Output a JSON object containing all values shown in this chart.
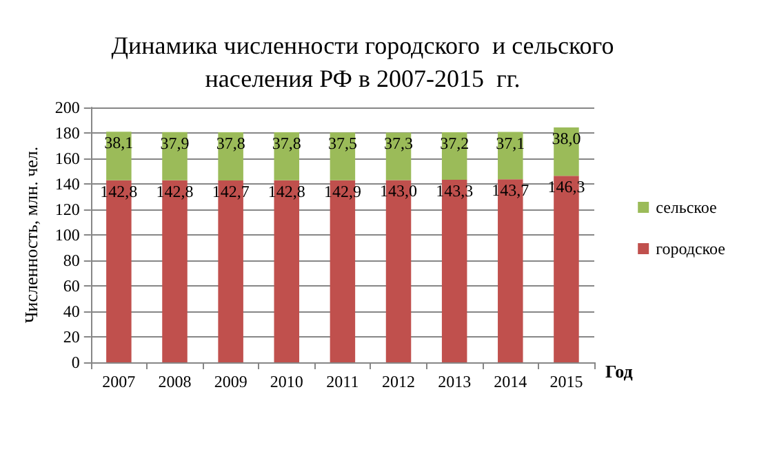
{
  "chart_data": {
    "type": "bar",
    "title": "Динамика численности городского  и сельского\nнаселения РФ в 2007-2015  гг.",
    "xlabel": "Год",
    "ylabel": "Численность, млн. чел.",
    "categories": [
      "2007",
      "2008",
      "2009",
      "2010",
      "2011",
      "2012",
      "2013",
      "2014",
      "2015"
    ],
    "stacked": true,
    "series": [
      {
        "name": "городское",
        "color": "#c0504d",
        "values": [
          142.8,
          142.8,
          142.7,
          142.8,
          142.9,
          143.0,
          143.3,
          143.7,
          146.3
        ],
        "value_labels": [
          "142,8",
          "142,8",
          "142,7",
          "142,8",
          "142,9",
          "143,0",
          "143,3",
          "143,7",
          "146,3"
        ]
      },
      {
        "name": "сельское",
        "color": "#9bbb59",
        "values": [
          38.1,
          37.9,
          37.8,
          37.8,
          37.5,
          37.3,
          37.2,
          37.1,
          38.0
        ],
        "value_labels": [
          "38,1",
          "37,9",
          "37,8",
          "37,8",
          "37,5",
          "37,3",
          "37,2",
          "37,1",
          "38,0"
        ]
      }
    ],
    "ylim": [
      0,
      200
    ],
    "yticks": [
      0,
      20,
      40,
      60,
      80,
      100,
      120,
      140,
      160,
      180,
      200
    ],
    "grid": "y",
    "legend": "right"
  }
}
